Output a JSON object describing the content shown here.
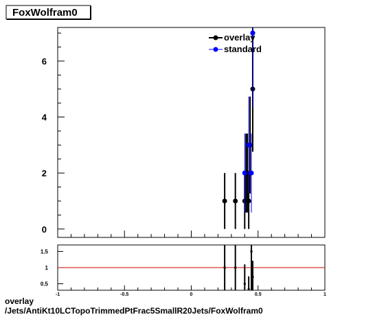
{
  "title": "FoxWolfram0",
  "footer": {
    "line1": "overlay",
    "line2": "/Jets/AntiKt10LCTopoTrimmedPtFrac5SmallR20Jets/FoxWolfram0"
  },
  "colors": {
    "overlay": "#000000",
    "standard": "#0000ff",
    "ratio_line": "#cc0000"
  },
  "chart_data": [
    {
      "type": "scatter",
      "title": "FoxWolfram0",
      "xlabel": "",
      "ylabel": "",
      "xlim": [
        -1,
        1
      ],
      "ylim": [
        -0.3,
        7.2
      ],
      "yticks": [
        0,
        2,
        4,
        6
      ],
      "grid": false,
      "legend_position": "top-right",
      "series": [
        {
          "name": "overlay",
          "color": "#000000",
          "points": [
            {
              "x": 0.25,
              "y": 1,
              "err": 1
            },
            {
              "x": 0.33,
              "y": 1,
              "err": 1
            },
            {
              "x": 0.4,
              "y": 1,
              "err": 1
            },
            {
              "x": 0.41,
              "y": 2,
              "err": 1.41
            },
            {
              "x": 0.42,
              "y": 2,
              "err": 1.41
            },
            {
              "x": 0.43,
              "y": 1,
              "err": 1
            },
            {
              "x": 0.44,
              "y": 3,
              "err": 1.73
            },
            {
              "x": 0.46,
              "y": 5,
              "err": 2.24
            },
            {
              "x": 0.46,
              "y": 7,
              "err": 2.65
            }
          ]
        },
        {
          "name": "standard",
          "color": "#0000ff",
          "points": [
            {
              "x": 0.4,
              "y": 2,
              "err": 1.41
            },
            {
              "x": 0.43,
              "y": 3,
              "err": 1.73
            },
            {
              "x": 0.45,
              "y": 2,
              "err": 1.41
            },
            {
              "x": 0.46,
              "y": 7,
              "err": 2.65
            }
          ]
        }
      ]
    },
    {
      "type": "scatter",
      "title": "",
      "xlabel": "",
      "ylabel": "",
      "xlim": [
        -1,
        1
      ],
      "ylim": [
        0.3,
        1.7
      ],
      "yticks": [
        0.5,
        1,
        1.5
      ],
      "xticks": [
        -1,
        -0.5,
        0,
        0.5,
        1
      ],
      "reference_line": 1,
      "series": [
        {
          "name": "ratio",
          "color": "#000000",
          "points": [
            {
              "x": 0.25,
              "y": 1.0,
              "err": 1.0
            },
            {
              "x": 0.33,
              "y": 1.0,
              "err": 1.0
            },
            {
              "x": 0.4,
              "y": 0.5,
              "err": 0.6
            },
            {
              "x": 0.43,
              "y": 0.33,
              "err": 0.4
            },
            {
              "x": 0.45,
              "y": 1.5,
              "err": 1.2
            },
            {
              "x": 0.46,
              "y": 0.71,
              "err": 0.5
            }
          ]
        }
      ]
    }
  ]
}
